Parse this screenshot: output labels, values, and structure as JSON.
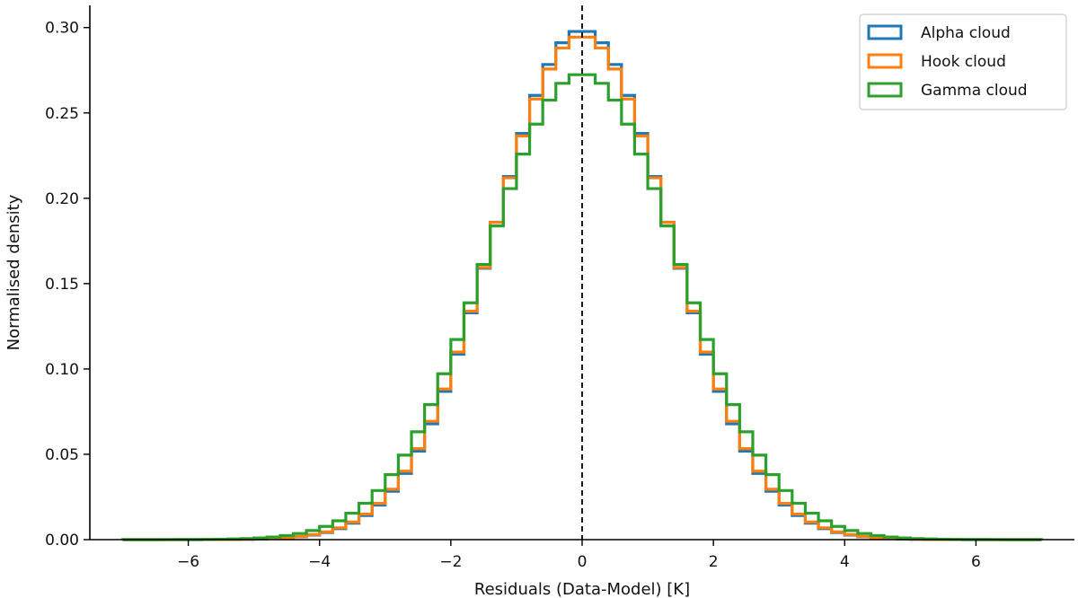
{
  "chart_data": {
    "type": "histogram-step",
    "xlabel": "Residuals (Data-Model) [K]",
    "ylabel": "Normalised density",
    "xlim": [
      -7.5,
      7.5
    ],
    "ylim": [
      0,
      0.313
    ],
    "xticks": [
      -6,
      -4,
      -2,
      0,
      2,
      4,
      6
    ],
    "xtick_labels": [
      "−6",
      "−4",
      "−2",
      "0",
      "2",
      "4",
      "6"
    ],
    "yticks": [
      0.0,
      0.05,
      0.1,
      0.15,
      0.2,
      0.25,
      0.3
    ],
    "ytick_labels": [
      "0.00",
      "0.05",
      "0.10",
      "0.15",
      "0.20",
      "0.25",
      "0.30"
    ],
    "vertical_reference_line": {
      "x": 0,
      "style": "dashed",
      "color": "#000000"
    },
    "bins": {
      "start": -7,
      "end": 7,
      "width": 0.2
    },
    "legend_position": "top-right",
    "spines": "left-bottom",
    "series": [
      {
        "name": "Alpha cloud",
        "color": "#1f77b4",
        "sigma": 1.335
      },
      {
        "name": "Hook cloud",
        "color": "#ff7f0e",
        "sigma": 1.35
      },
      {
        "name": "Gamma cloud",
        "color": "#2ca02c",
        "sigma": 1.46
      }
    ]
  }
}
